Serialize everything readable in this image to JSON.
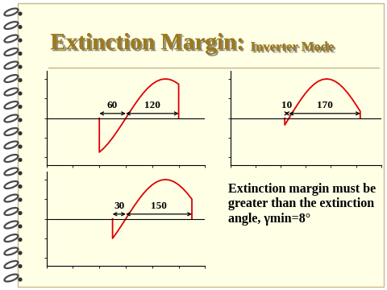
{
  "slide": {
    "title": "Extinction Margin:",
    "subtitle": "Inverter Mode",
    "note": "Extinction margin must be greater than the extinction angle, γmin=8°"
  },
  "chart_data": [
    {
      "type": "line",
      "color": "#dd0000",
      "x": [
        120,
        120,
        130,
        140,
        150,
        160,
        170,
        180,
        190,
        200,
        210,
        220,
        230,
        240,
        250,
        260,
        270,
        280,
        290,
        300,
        300
      ],
      "values": [
        0,
        -0.866,
        -0.766,
        -0.643,
        -0.5,
        -0.342,
        -0.174,
        0,
        0.174,
        0.342,
        0.5,
        0.643,
        0.766,
        0.866,
        0.94,
        0.985,
        1,
        0.985,
        0.94,
        0.866,
        0
      ],
      "xlim": [
        0,
        360
      ],
      "ylim": [
        -1.2,
        1.2
      ],
      "xticks": [
        0,
        60,
        120,
        180,
        240,
        300,
        360
      ],
      "yticks": [
        -1,
        -0.5,
        0,
        0.5,
        1
      ],
      "tick_labels": false,
      "annotations": [
        {
          "text": "60",
          "from": 120,
          "to": 180
        },
        {
          "text": "120",
          "from": 180,
          "to": 300
        }
      ]
    },
    {
      "type": "line",
      "color": "#dd0000",
      "x": [
        130,
        130,
        140,
        150,
        160,
        170,
        180,
        190,
        200,
        210,
        220,
        230,
        240,
        250,
        260,
        270,
        280,
        290,
        300,
        310,
        310
      ],
      "values": [
        0,
        -0.174,
        0,
        0.174,
        0.342,
        0.5,
        0.643,
        0.766,
        0.866,
        0.94,
        0.985,
        1,
        0.985,
        0.94,
        0.866,
        0.766,
        0.643,
        0.5,
        0.342,
        0.174,
        0
      ],
      "xlim": [
        0,
        360
      ],
      "ylim": [
        -1.2,
        1.2
      ],
      "xticks": [
        0,
        60,
        120,
        180,
        240,
        300,
        360
      ],
      "yticks": [
        -1,
        -0.5,
        0,
        0.5,
        1
      ],
      "tick_labels": false,
      "annotations": [
        {
          "text": "10",
          "from": 130,
          "to": 140
        },
        {
          "text": "170",
          "from": 140,
          "to": 310
        }
      ]
    },
    {
      "type": "line",
      "color": "#dd0000",
      "x": [
        150,
        150,
        160,
        170,
        180,
        190,
        200,
        210,
        220,
        230,
        240,
        250,
        260,
        270,
        280,
        290,
        300,
        310,
        320,
        330,
        330
      ],
      "values": [
        0,
        -0.5,
        -0.342,
        -0.174,
        0,
        0.174,
        0.342,
        0.5,
        0.643,
        0.766,
        0.866,
        0.94,
        0.985,
        1,
        0.985,
        0.94,
        0.866,
        0.766,
        0.643,
        0.5,
        0
      ],
      "xlim": [
        0,
        360
      ],
      "ylim": [
        -1.2,
        1.2
      ],
      "xticks": [
        0,
        60,
        120,
        180,
        240,
        300,
        360
      ],
      "yticks": [
        -1,
        -0.5,
        0,
        0.5,
        1
      ],
      "tick_labels": false,
      "annotations": [
        {
          "text": "30",
          "from": 150,
          "to": 180
        },
        {
          "text": "150",
          "from": 180,
          "to": 330
        }
      ]
    }
  ]
}
